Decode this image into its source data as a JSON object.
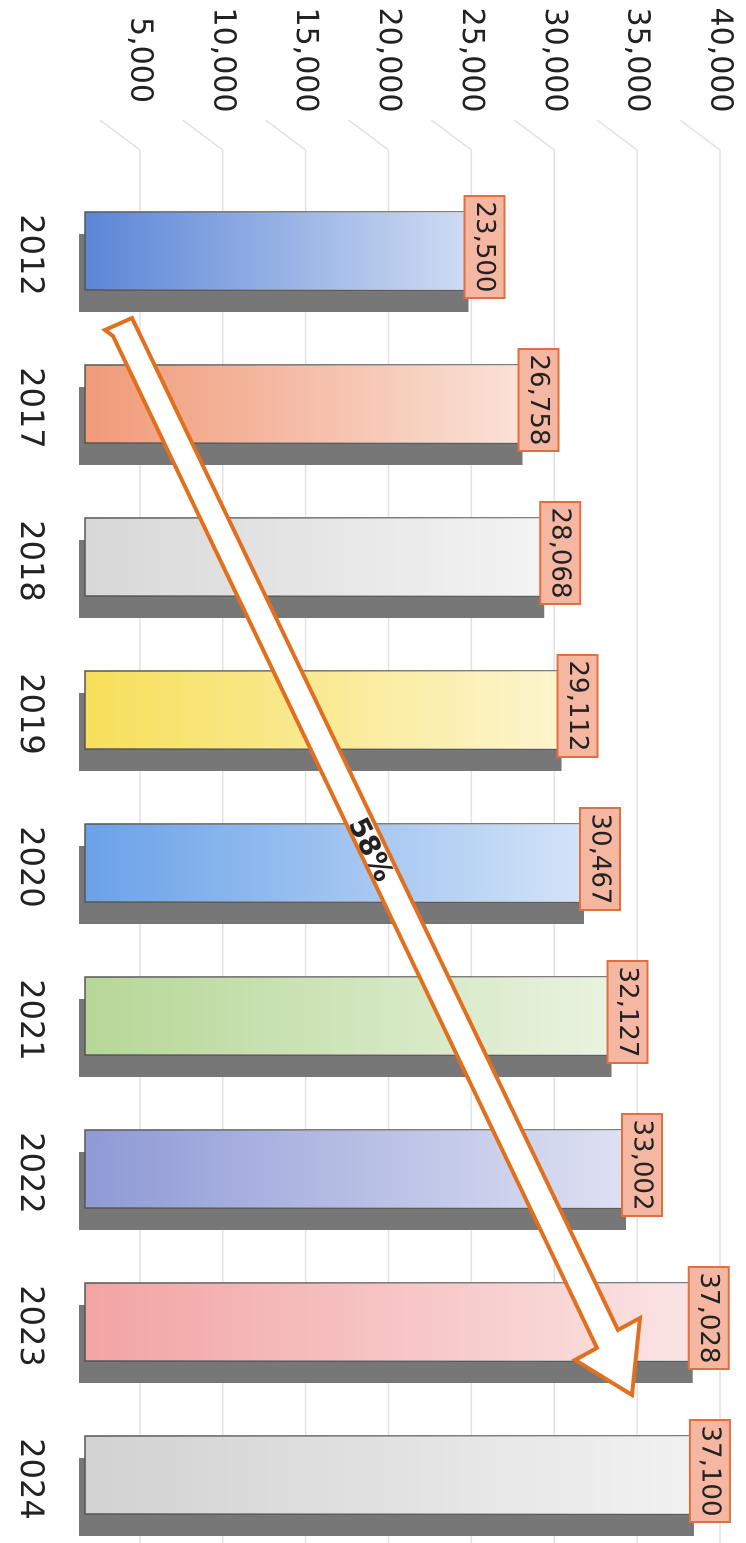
{
  "chart_data": {
    "type": "bar",
    "orientation": "horizontal",
    "categories": [
      "2012",
      "2017",
      "2018",
      "2019",
      "2020",
      "2021",
      "2022",
      "2023",
      "2024"
    ],
    "values": [
      23500,
      26758,
      28068,
      29112,
      30467,
      32127,
      33002,
      37028,
      37100
    ],
    "value_labels": [
      "23,500",
      "26,758",
      "28,068",
      "29,112",
      "30,467",
      "32,127",
      "33,002",
      "37,028",
      "37,100"
    ],
    "colors": [
      "#5b86d6",
      "#f09a78",
      "#d8d8d8",
      "#f7df5a",
      "#6aa2e8",
      "#b6d796",
      "#8f9ad6",
      "#f2a4a4",
      "#d2d2d2"
    ],
    "xlim": [
      0,
      40000
    ],
    "xticks": [
      {
        "value": 5000,
        "label": "5,000"
      },
      {
        "value": 10000,
        "label": "10,000"
      },
      {
        "value": 15000,
        "label": "15,000"
      },
      {
        "value": 20000,
        "label": "20,000"
      },
      {
        "value": 25000,
        "label": "25,000"
      },
      {
        "value": 30000,
        "label": "30,000"
      },
      {
        "value": 35000,
        "label": "35,000"
      },
      {
        "value": 40000,
        "label": "40,000"
      }
    ],
    "grid": true,
    "annotation": "58%"
  }
}
